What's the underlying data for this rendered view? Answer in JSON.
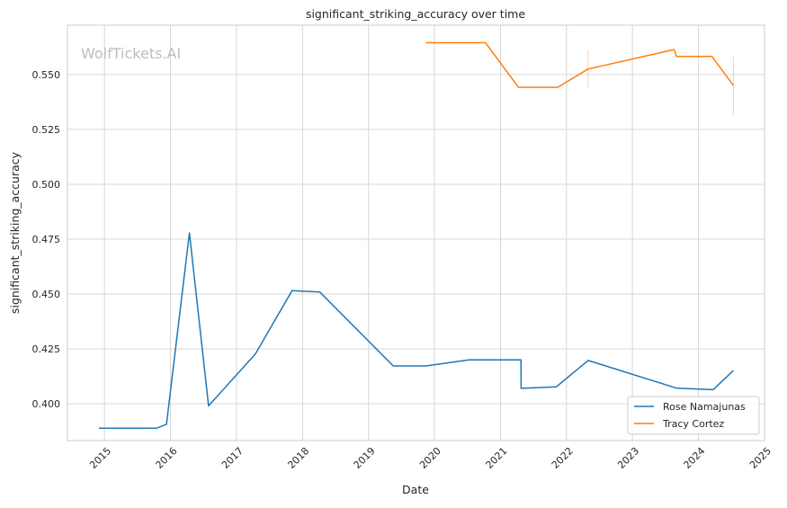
{
  "chart_data": {
    "type": "line",
    "title": "significant_striking_accuracy over time",
    "xlabel": "Date",
    "ylabel": "significant_striking_accuracy",
    "watermark": "WolfTickets.AI",
    "xlim": [
      "2014-06-10",
      "2025-01-01"
    ],
    "ylim": [
      0.3832,
      0.5725
    ],
    "x_ticks": [
      "2015",
      "2016",
      "2017",
      "2018",
      "2019",
      "2020",
      "2021",
      "2022",
      "2023",
      "2024",
      "2025"
    ],
    "y_ticks": [
      "0.400",
      "0.425",
      "0.450",
      "0.475",
      "0.500",
      "0.525",
      "0.550"
    ],
    "grid": true,
    "legend_position": "lower-right",
    "series": [
      {
        "name": "Rose Namajunas",
        "color": "#1f77b4",
        "points": [
          [
            "2014-12-01",
            0.3888
          ],
          [
            "2015-10-15",
            0.3888
          ],
          [
            "2015-12-10",
            0.3906
          ],
          [
            "2016-04-15",
            0.4778
          ],
          [
            "2016-07-30",
            0.399
          ],
          [
            "2017-04-15",
            0.4226
          ],
          [
            "2017-11-04",
            0.4515
          ],
          [
            "2018-04-07",
            0.4509
          ],
          [
            "2019-05-18",
            0.4172
          ],
          [
            "2019-11-15",
            0.4172
          ],
          [
            "2020-07-12",
            0.42
          ],
          [
            "2021-04-24",
            0.42
          ],
          [
            "2021-04-25",
            0.407
          ],
          [
            "2021-11-06",
            0.4077
          ],
          [
            "2022-05-01",
            0.4197
          ],
          [
            "2023-09-02",
            0.4071
          ],
          [
            "2024-03-23",
            0.4064
          ],
          [
            "2024-07-13",
            0.4151
          ]
        ]
      },
      {
        "name": "Tracy Cortez",
        "color": "#ff7f0e",
        "points": [
          [
            "2019-11-15",
            0.5645
          ],
          [
            "2020-10-10",
            0.5645
          ],
          [
            "2021-04-10",
            0.5442
          ],
          [
            "2021-11-13",
            0.5442
          ],
          [
            "2022-04-30",
            0.5525
          ],
          [
            "2023-08-19",
            0.5614
          ],
          [
            "2023-09-02",
            0.5583
          ],
          [
            "2024-03-16",
            0.5583
          ],
          [
            "2024-07-13",
            0.545
          ]
        ],
        "error_bars": [
          {
            "x": "2022-04-30",
            "low": 0.544,
            "high": 0.5615
          },
          {
            "x": "2024-07-13",
            "low": 0.5315,
            "high": 0.558
          }
        ]
      }
    ]
  }
}
